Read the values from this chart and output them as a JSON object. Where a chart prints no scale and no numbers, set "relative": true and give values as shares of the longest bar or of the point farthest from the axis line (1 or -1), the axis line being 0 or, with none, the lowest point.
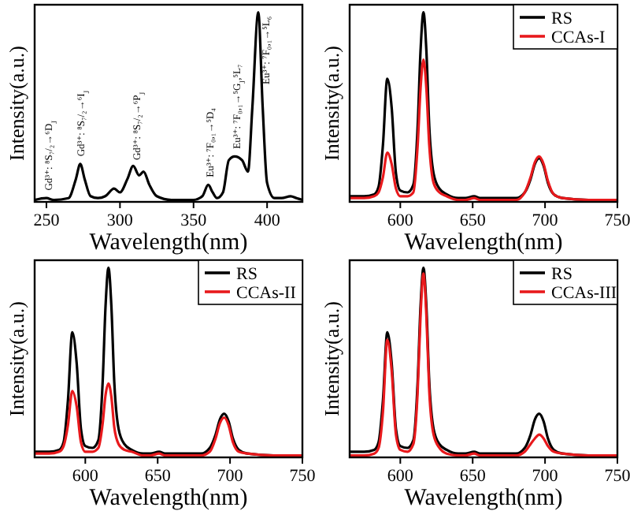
{
  "chart_data": [
    {
      "type": "line",
      "relative": true,
      "xlabel": "Wavelength(nm)",
      "ylabel": "Intensity(a.u.)",
      "xlim": [
        242,
        424
      ],
      "xticks": [
        250,
        300,
        350,
        400
      ],
      "x": [
        242,
        250,
        255,
        265,
        270,
        273,
        276,
        280,
        285,
        290,
        296,
        300,
        305,
        309,
        313,
        316,
        320,
        325,
        335,
        350,
        356,
        360,
        363,
        366,
        370,
        374,
        378,
        383,
        387,
        390,
        394,
        397,
        400,
        405,
        410,
        416,
        420,
        424
      ],
      "series": [
        {
          "color": "#000000",
          "values": [
            0.01,
            0.02,
            0.01,
            0.02,
            0.12,
            0.2,
            0.12,
            0.03,
            0.02,
            0.03,
            0.07,
            0.05,
            0.12,
            0.19,
            0.14,
            0.16,
            0.09,
            0.03,
            0.01,
            0.01,
            0.03,
            0.09,
            0.05,
            0.02,
            0.05,
            0.22,
            0.24,
            0.22,
            0.16,
            0.5,
            1,
            0.5,
            0.1,
            0.02,
            0.02,
            0.03,
            0.02,
            0.01
          ]
        }
      ],
      "annotations": [
        {
          "text": "Gd³⁺: ⁸S₇/₂→⁶D$_{J}$",
          "x": 251,
          "y": 0.06
        },
        {
          "text": "Gd³⁺: ⁸S₇/₂→⁶I$_{J}$",
          "x": 273,
          "y": 0.24
        },
        {
          "text": "Gd³⁺: ⁸S₇/₂→⁶P$_{J}$",
          "x": 311,
          "y": 0.22
        },
        {
          "text": "Eu³⁺: ⁷F₀,₁→⁵D₄",
          "x": 361,
          "y": 0.13
        },
        {
          "text": "Eu³⁺: ⁷F₀,₁→⁵G$_{J}$,⁵L₇",
          "x": 379,
          "y": 0.28
        },
        {
          "text": "Eu³⁺: ⁷F₀,₁→⁵L₆",
          "x": 399,
          "y": 0.62
        }
      ]
    },
    {
      "type": "line",
      "relative": true,
      "xlabel": "Wavelength(nm)",
      "ylabel": "Intensity(a.u.)",
      "xlim": [
        565,
        750
      ],
      "xticks": [
        600,
        650,
        700,
        750
      ],
      "legend": "top right",
      "x": [
        565,
        575,
        582,
        585,
        588,
        591,
        594,
        597,
        600,
        605,
        609,
        612,
        614,
        616,
        618,
        620,
        623,
        627,
        632,
        640,
        645,
        651,
        655,
        665,
        680,
        686,
        690,
        693,
        696,
        699,
        702,
        706,
        712,
        730,
        750
      ],
      "series": [
        {
          "name": "RS",
          "color": "#000000",
          "values": [
            0.03,
            0.03,
            0.04,
            0.08,
            0.3,
            0.65,
            0.5,
            0.15,
            0.06,
            0.05,
            0.09,
            0.4,
            0.8,
            1,
            0.8,
            0.4,
            0.15,
            0.07,
            0.04,
            0.02,
            0.02,
            0.03,
            0.02,
            0.02,
            0.02,
            0.05,
            0.12,
            0.2,
            0.23,
            0.19,
            0.1,
            0.04,
            0.02,
            0.01,
            0.01
          ]
        },
        {
          "name": "CCAs-I",
          "color": "#e8191c",
          "values": [
            0.02,
            0.02,
            0.03,
            0.05,
            0.13,
            0.26,
            0.2,
            0.07,
            0.03,
            0.03,
            0.05,
            0.3,
            0.6,
            0.75,
            0.6,
            0.3,
            0.1,
            0.05,
            0.03,
            0.01,
            0.01,
            0.02,
            0.01,
            0.01,
            0.01,
            0.05,
            0.13,
            0.21,
            0.24,
            0.2,
            0.11,
            0.04,
            0.02,
            0.01,
            0.01
          ]
        }
      ]
    },
    {
      "type": "line",
      "relative": true,
      "xlabel": "Wavelength(nm)",
      "ylabel": "Intensity(a.u.)",
      "xlim": [
        565,
        750
      ],
      "xticks": [
        600,
        650,
        700,
        750
      ],
      "legend": "top right",
      "x": [
        565,
        575,
        582,
        585,
        588,
        591,
        594,
        597,
        600,
        605,
        609,
        612,
        614,
        616,
        618,
        620,
        623,
        627,
        632,
        640,
        645,
        651,
        655,
        665,
        680,
        686,
        690,
        693,
        696,
        699,
        702,
        706,
        712,
        730,
        750
      ],
      "series": [
        {
          "name": "RS",
          "color": "#000000",
          "values": [
            0.03,
            0.03,
            0.04,
            0.08,
            0.3,
            0.66,
            0.5,
            0.15,
            0.06,
            0.05,
            0.09,
            0.4,
            0.8,
            1,
            0.8,
            0.4,
            0.15,
            0.07,
            0.04,
            0.02,
            0.02,
            0.03,
            0.02,
            0.02,
            0.02,
            0.05,
            0.12,
            0.2,
            0.23,
            0.19,
            0.1,
            0.04,
            0.02,
            0.01,
            0.01
          ]
        },
        {
          "name": "CCAs-II",
          "color": "#e8191c",
          "values": [
            0.02,
            0.02,
            0.03,
            0.06,
            0.17,
            0.35,
            0.27,
            0.08,
            0.03,
            0.03,
            0.05,
            0.18,
            0.33,
            0.39,
            0.32,
            0.16,
            0.07,
            0.04,
            0.03,
            0.01,
            0.01,
            0.02,
            0.01,
            0.01,
            0.01,
            0.03,
            0.1,
            0.18,
            0.21,
            0.17,
            0.08,
            0.03,
            0.02,
            0.01,
            0.01
          ]
        }
      ]
    },
    {
      "type": "line",
      "relative": true,
      "xlabel": "Wavelength(nm)",
      "ylabel": "Intensity(a.u.)",
      "xlim": [
        565,
        750
      ],
      "xticks": [
        600,
        650,
        700,
        750
      ],
      "legend": "top right",
      "x": [
        565,
        575,
        582,
        585,
        588,
        591,
        594,
        597,
        600,
        605,
        609,
        612,
        614,
        616,
        618,
        620,
        623,
        627,
        632,
        640,
        645,
        651,
        655,
        665,
        680,
        686,
        690,
        693,
        696,
        699,
        702,
        706,
        712,
        730,
        750
      ],
      "series": [
        {
          "name": "RS",
          "color": "#000000",
          "values": [
            0.03,
            0.03,
            0.04,
            0.08,
            0.3,
            0.66,
            0.5,
            0.15,
            0.06,
            0.05,
            0.09,
            0.4,
            0.8,
            1,
            0.8,
            0.4,
            0.15,
            0.07,
            0.04,
            0.02,
            0.02,
            0.03,
            0.02,
            0.02,
            0.02,
            0.05,
            0.12,
            0.2,
            0.23,
            0.19,
            0.1,
            0.04,
            0.02,
            0.01,
            0.01
          ]
        },
        {
          "name": "CCAs-III",
          "color": "#e8191c",
          "values": [
            0.01,
            0.01,
            0.02,
            0.05,
            0.24,
            0.62,
            0.46,
            0.12,
            0.04,
            0.03,
            0.07,
            0.35,
            0.75,
            0.97,
            0.75,
            0.35,
            0.12,
            0.05,
            0.02,
            0.01,
            0.01,
            0.02,
            0.01,
            0.01,
            0.01,
            0.03,
            0.07,
            0.1,
            0.12,
            0.1,
            0.06,
            0.03,
            0.02,
            0.01,
            0.01
          ]
        }
      ]
    }
  ]
}
